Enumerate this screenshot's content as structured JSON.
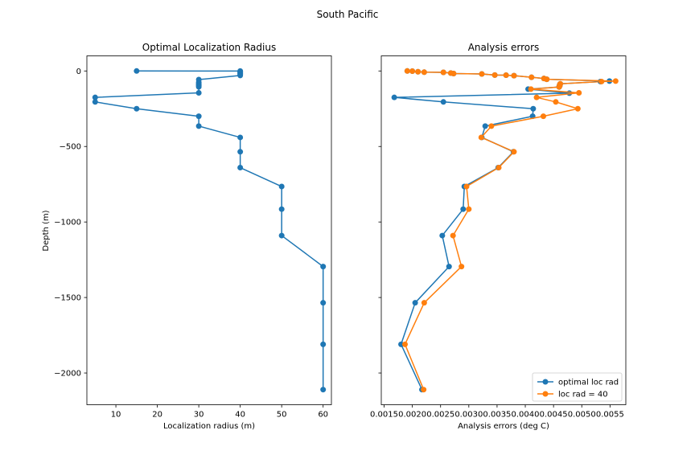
{
  "figure": {
    "suptitle": "South Pacific"
  },
  "colors": {
    "blue": "#1f77b4",
    "orange": "#ff7f0e"
  },
  "chart_data": [
    {
      "type": "line",
      "title": "Optimal Localization Radius",
      "xlabel": "Localization radius (m)",
      "ylabel": "Depth (m)",
      "xlim": [
        3,
        62
      ],
      "ylim": [
        -2210,
        100
      ],
      "xticks": [
        10,
        20,
        30,
        40,
        50,
        60
      ],
      "xtick_labels": [
        "10",
        "20",
        "30",
        "40",
        "50",
        "60"
      ],
      "yticks": [
        0,
        -500,
        -1000,
        -1500,
        -2000
      ],
      "ytick_labels": [
        "0",
        "−500",
        "−1000",
        "−1500",
        "−2000"
      ],
      "grid": false,
      "series": [
        {
          "color": "#1f77b4",
          "marker": "circle",
          "x": [
            15,
            40,
            40,
            40,
            40,
            40,
            40,
            30,
            30,
            30,
            30,
            30,
            30,
            30,
            5,
            5,
            15,
            30,
            30,
            40,
            40,
            40,
            50,
            50,
            50,
            60,
            60,
            60,
            60
          ],
          "y": [
            0,
            -0.5,
            -5,
            -10,
            -16,
            -23,
            -30,
            -57,
            -75,
            -83,
            -90,
            -98,
            -105,
            -145,
            -175,
            -205,
            -250,
            -300,
            -365,
            -440,
            -535,
            -640,
            -765,
            -915,
            -1090,
            -1295,
            -1535,
            -1810,
            -2110
          ]
        }
      ]
    },
    {
      "type": "line",
      "title": "Analysis errors",
      "xlabel": "Analysis errors (deg C)",
      "ylabel": "",
      "xlim": [
        0.00145,
        0.00578
      ],
      "ylim": [
        -2210,
        100
      ],
      "xticks": [
        0.0015,
        0.002,
        0.0025,
        0.003,
        0.0035,
        0.004,
        0.0045,
        0.005,
        0.0055
      ],
      "xtick_labels": [
        "0.0015",
        "0.0020",
        "0.0025",
        "0.0030",
        "0.0035",
        "0.0040",
        "0.0045",
        "0.0050",
        "0.0055"
      ],
      "yticks": [
        0,
        -500,
        -1000,
        -1500,
        -2000
      ],
      "grid": false,
      "legend": "bottom-right",
      "series": [
        {
          "name": "optimal loc rad",
          "color": "#1f77b4",
          "marker": "circle",
          "x": [
            0.00191,
            0.002,
            0.0021,
            0.00221,
            0.00255,
            0.00268,
            0.00273,
            0.00323,
            0.00346,
            0.00366,
            0.0038,
            0.00411,
            0.00433,
            0.00438,
            0.00549,
            0.00533,
            0.00462,
            0.00461,
            0.00461,
            0.00461,
            0.0046,
            0.0046,
            0.00405,
            0.00478,
            0.00168,
            0.00255,
            0.00414,
            0.00413,
            0.00329,
            0.00323,
            0.00379,
            0.00352,
            0.00292,
            0.0029,
            0.00253,
            0.00265,
            0.00205,
            0.0018,
            0.00217
          ],
          "y": [
            0,
            -1,
            -5,
            -8,
            -9,
            -14,
            -17,
            -20,
            -27,
            -28,
            -31,
            -42,
            -50,
            -55,
            -67,
            -70,
            -85,
            -90,
            -94,
            -98,
            -102,
            -106,
            -120,
            -147,
            -175,
            -205,
            -250,
            -300,
            -365,
            -440,
            -535,
            -640,
            -765,
            -915,
            -1090,
            -1295,
            -1535,
            -1810,
            -2110
          ]
        },
        {
          "name": "loc rad = 40",
          "color": "#ff7f0e",
          "marker": "circle",
          "x": [
            0.00191,
            0.002,
            0.0021,
            0.00221,
            0.00255,
            0.00268,
            0.00273,
            0.00323,
            0.00346,
            0.00366,
            0.0038,
            0.00411,
            0.00433,
            0.00438,
            0.0056,
            0.00535,
            0.00462,
            0.00461,
            0.00461,
            0.0046,
            0.0041,
            0.00495,
            0.0042,
            0.00454,
            0.00493,
            0.00432,
            0.0034,
            0.00322,
            0.0038,
            0.00353,
            0.00296,
            0.003,
            0.00272,
            0.00287,
            0.00221,
            0.00187,
            0.0022
          ],
          "y": [
            0,
            -1,
            -5,
            -8,
            -9,
            -14,
            -17,
            -20,
            -27,
            -28,
            -31,
            -42,
            -50,
            -55,
            -67,
            -70,
            -85,
            -90,
            -98,
            -106,
            -120,
            -145,
            -175,
            -205,
            -250,
            -300,
            -365,
            -440,
            -535,
            -640,
            -765,
            -915,
            -1090,
            -1295,
            -1535,
            -1810,
            -2110
          ]
        }
      ]
    }
  ]
}
